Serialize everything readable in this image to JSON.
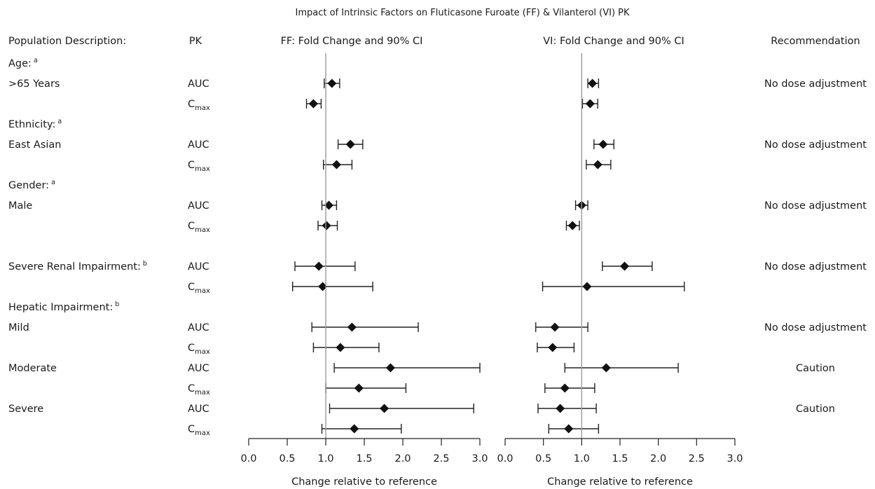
{
  "chart_data": {
    "type": "forest",
    "title": "Impact of Intrinsic Factors on Fluticasone Furoate (FF) & Vilanterol (VI) PK",
    "headers": {
      "population": "Population Description:",
      "pk": "PK",
      "recommendation": "Recommendation"
    },
    "panels": [
      {
        "title": "FF: Fold Change and 90% CI",
        "xlabel": "Change relative to reference",
        "xlim": [
          0,
          3
        ],
        "ticks": [
          "0.0",
          "0.5",
          "1.0",
          "1.5",
          "2.0",
          "2.5",
          "3.0"
        ],
        "reference_line": 1.0
      },
      {
        "title": "VI: Fold Change and 90% CI",
        "xlabel": "Change relative to reference",
        "xlim": [
          0,
          3
        ],
        "ticks": [
          "0.0",
          "0.5",
          "1.0",
          "1.5",
          "2.0",
          "2.5",
          "3.0"
        ],
        "reference_line": 1.0
      }
    ],
    "rows": [
      {
        "kind": "header",
        "label": "Age:",
        "sup": "a"
      },
      {
        "kind": "data",
        "label": ">65  Years",
        "pk": "AUC",
        "ff": [
          1.08,
          0.98,
          1.18
        ],
        "vi": [
          1.14,
          1.08,
          1.22
        ],
        "rec": "No dose adjustment"
      },
      {
        "kind": "data",
        "label": "",
        "pk": "C",
        "pk_sub": "max",
        "ff": [
          0.84,
          0.75,
          0.94
        ],
        "vi": [
          1.11,
          1.01,
          1.21
        ],
        "rec": ""
      },
      {
        "kind": "header",
        "label": "Ethnicity:",
        "sup": "a"
      },
      {
        "kind": "data",
        "label": "East Asian",
        "pk": "AUC",
        "ff": [
          1.32,
          1.16,
          1.48
        ],
        "vi": [
          1.28,
          1.16,
          1.42
        ],
        "rec": "No dose adjustment"
      },
      {
        "kind": "data",
        "label": "",
        "pk": "C",
        "pk_sub": "max",
        "ff": [
          1.14,
          0.97,
          1.34
        ],
        "vi": [
          1.21,
          1.06,
          1.38
        ],
        "rec": ""
      },
      {
        "kind": "header",
        "label": "Gender:",
        "sup": "a"
      },
      {
        "kind": "data",
        "label": "Male",
        "pk": "AUC",
        "ff": [
          1.04,
          0.95,
          1.14
        ],
        "vi": [
          1.0,
          0.92,
          1.08
        ],
        "rec": "No dose adjustment"
      },
      {
        "kind": "data",
        "label": "",
        "pk": "C",
        "pk_sub": "max",
        "ff": [
          1.01,
          0.9,
          1.15
        ],
        "vi": [
          0.88,
          0.8,
          0.97
        ],
        "rec": ""
      },
      {
        "kind": "spacer"
      },
      {
        "kind": "data",
        "label": "Severe Renal Impairment:",
        "sup": "b",
        "pk": "AUC",
        "ff": [
          0.91,
          0.6,
          1.38
        ],
        "vi": [
          1.56,
          1.27,
          1.92
        ],
        "rec": "No dose adjustment"
      },
      {
        "kind": "data",
        "label": "",
        "pk": "C",
        "pk_sub": "max",
        "ff": [
          0.96,
          0.57,
          1.61
        ],
        "vi": [
          1.07,
          0.49,
          2.34
        ],
        "rec": ""
      },
      {
        "kind": "header",
        "label": "Hepatic Impairment:",
        "sup": "b"
      },
      {
        "kind": "data",
        "label": "Mild",
        "pk": "AUC",
        "ff": [
          1.34,
          0.82,
          2.2
        ],
        "vi": [
          0.65,
          0.4,
          1.08
        ],
        "rec": "No dose adjustment"
      },
      {
        "kind": "data",
        "label": "",
        "pk": "C",
        "pk_sub": "max",
        "ff": [
          1.19,
          0.84,
          1.69
        ],
        "vi": [
          0.62,
          0.42,
          0.9
        ],
        "rec": ""
      },
      {
        "kind": "data",
        "label": "Moderate",
        "pk": "AUC",
        "ff": [
          1.84,
          1.11,
          3.0
        ],
        "vi": [
          1.32,
          0.78,
          2.26
        ],
        "rec": "Caution"
      },
      {
        "kind": "data",
        "label": "",
        "pk": "C",
        "pk_sub": "max",
        "ff": [
          1.43,
          1.0,
          2.04
        ],
        "vi": [
          0.78,
          0.52,
          1.17
        ],
        "rec": ""
      },
      {
        "kind": "data",
        "label": "Severe",
        "pk": "AUC",
        "ff": [
          1.76,
          1.05,
          2.92
        ],
        "vi": [
          0.72,
          0.43,
          1.19
        ],
        "rec": "Caution"
      },
      {
        "kind": "data",
        "label": "",
        "pk": "C",
        "pk_sub": "max",
        "ff": [
          1.37,
          0.95,
          1.98
        ],
        "vi": [
          0.83,
          0.57,
          1.22
        ],
        "rec": ""
      }
    ]
  }
}
